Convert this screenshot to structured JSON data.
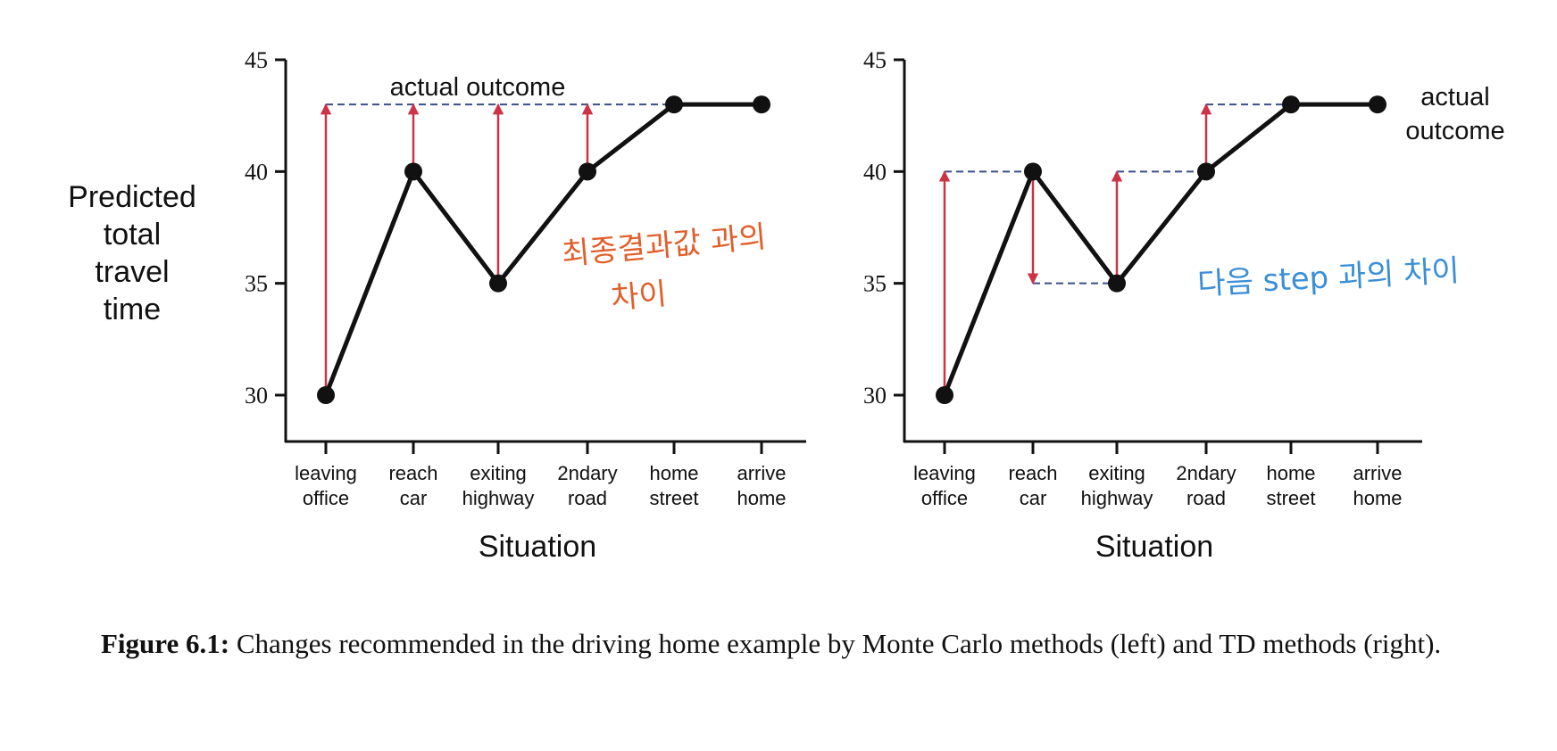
{
  "ylabel": [
    "Predicted",
    "total",
    "travel",
    "time"
  ],
  "xlabel": "Situation",
  "categories": [
    [
      "leaving",
      "office"
    ],
    [
      "reach",
      "car"
    ],
    [
      "exiting",
      "highway"
    ],
    [
      "2ndary",
      "road"
    ],
    [
      "home",
      "street"
    ],
    [
      "arrive",
      "home"
    ]
  ],
  "yticks": [
    "30",
    "35",
    "40",
    "45"
  ],
  "caption": {
    "label": "Figure 6.1:",
    "text": "Changes recommended in the driving home example by Monte Carlo methods (left) and TD methods (right)."
  },
  "chart_data": [
    {
      "type": "line",
      "panel": "left",
      "categories": [
        "leaving office",
        "reach car",
        "exiting highway",
        "2ndary road",
        "home street",
        "arrive home"
      ],
      "values": [
        30,
        40,
        35,
        40,
        43,
        43
      ],
      "ylim": [
        28,
        45
      ],
      "yticks": [
        30,
        35,
        40,
        45
      ],
      "ylabel": "Predicted total travel time",
      "xlabel": "Situation",
      "reference_line": {
        "value": 43,
        "style": "dashed",
        "color": "#3a4f8a"
      },
      "annotation": "actual outcome",
      "arrows": [
        {
          "category": "leaving office",
          "from": 30,
          "to": 43
        },
        {
          "category": "reach car",
          "from": 40,
          "to": 43
        },
        {
          "category": "exiting highway",
          "from": 35,
          "to": 43
        },
        {
          "category": "2ndary road",
          "from": 40,
          "to": 43
        }
      ],
      "handwritten_note": [
        "최종결과값 과의",
        "차이"
      ],
      "note_color": "#e0602c",
      "arrow_color": "#cc3344",
      "line_color": "#111111"
    },
    {
      "type": "line",
      "panel": "right",
      "categories": [
        "leaving office",
        "reach car",
        "exiting highway",
        "2ndary road",
        "home street",
        "arrive home"
      ],
      "values": [
        30,
        40,
        35,
        40,
        43,
        43
      ],
      "ylim": [
        28,
        45
      ],
      "yticks": [
        30,
        35,
        40,
        45
      ],
      "xlabel": "Situation",
      "dashed_segments": [
        {
          "from_index": 0,
          "to_index": 1,
          "value": 40
        },
        {
          "from_index": 1,
          "to_index": 2,
          "value": 35
        },
        {
          "from_index": 2,
          "to_index": 3,
          "value": 40
        },
        {
          "from_index": 3,
          "to_index": 5,
          "value": 43
        }
      ],
      "annotation": [
        "actual",
        "outcome"
      ],
      "arrows": [
        {
          "category": "leaving office",
          "from": 30,
          "to": 40
        },
        {
          "category": "reach car",
          "from": 40,
          "to": 35
        },
        {
          "category": "exiting highway",
          "from": 35,
          "to": 40
        },
        {
          "category": "2ndary road",
          "from": 40,
          "to": 43
        }
      ],
      "handwritten_note": [
        "다음 step 과의 차이"
      ],
      "note_color": "#3a8fd6",
      "arrow_color": "#cc3344",
      "line_color": "#111111"
    }
  ]
}
